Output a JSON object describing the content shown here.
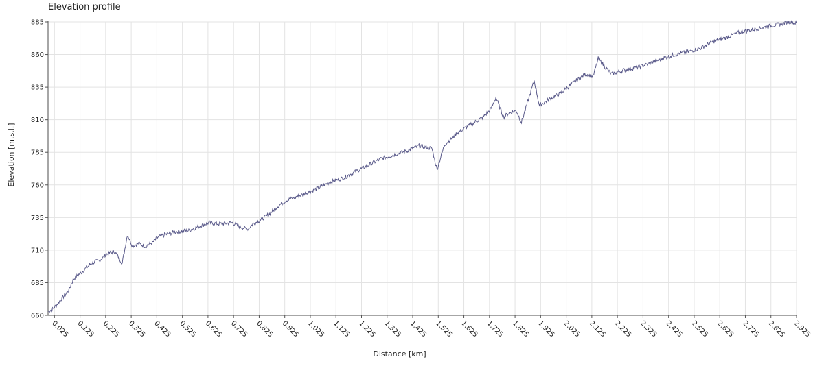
{
  "chart_data": {
    "type": "line",
    "title": "Elevation profile",
    "xlabel": "Distance [km]",
    "ylabel": "Elevation [m.s.l.]",
    "xlim": [
      0.0,
      2.925
    ],
    "ylim": [
      660,
      885
    ],
    "x_ticks": [
      "0.025",
      "0.125",
      "0.225",
      "0.325",
      "0.425",
      "0.525",
      "0.625",
      "0.725",
      "0.825",
      "0.925",
      "1.025",
      "1.125",
      "1.225",
      "1.325",
      "1.425",
      "1.525",
      "1.625",
      "1.725",
      "1.825",
      "1.925",
      "2.025",
      "2.125",
      "2.225",
      "2.325",
      "2.425",
      "2.525",
      "2.625",
      "2.725",
      "2.825",
      "2.925"
    ],
    "y_ticks": [
      660,
      685,
      710,
      735,
      760,
      785,
      810,
      835,
      860,
      885
    ],
    "grid": true,
    "line_color": "#5a5a8a",
    "series": [
      {
        "x": [
          0.0,
          0.02,
          0.05,
          0.08,
          0.1,
          0.13,
          0.17,
          0.2,
          0.23,
          0.26,
          0.29,
          0.31,
          0.33,
          0.35,
          0.38,
          0.41,
          0.43,
          0.46,
          0.5,
          0.55,
          0.6,
          0.63,
          0.67,
          0.72,
          0.75,
          0.78,
          0.8,
          0.83,
          0.86,
          0.9,
          0.93,
          1.0,
          1.05,
          1.1,
          1.15,
          1.2,
          1.25,
          1.3,
          1.35,
          1.4,
          1.45,
          1.5,
          1.52,
          1.55,
          1.6,
          1.65,
          1.7,
          1.73,
          1.75,
          1.78,
          1.8,
          1.83,
          1.85,
          1.9,
          1.92,
          1.97,
          2.0,
          2.05,
          2.1,
          2.13,
          2.15,
          2.2,
          2.25,
          2.3,
          2.35,
          2.4,
          2.45,
          2.5,
          2.55,
          2.6,
          2.65,
          2.7,
          2.75,
          2.8,
          2.85,
          2.9,
          2.925
        ],
        "y": [
          663,
          665,
          672,
          679,
          688,
          693,
          700,
          702,
          707,
          709,
          700,
          722,
          713,
          715,
          713,
          716,
          720,
          722,
          724,
          725,
          729,
          731,
          730,
          731,
          728,
          726,
          730,
          733,
          737,
          744,
          748,
          753,
          757,
          762,
          765,
          770,
          775,
          780,
          783,
          786,
          790,
          788,
          772,
          791,
          800,
          806,
          812,
          818,
          827,
          812,
          815,
          817,
          808,
          840,
          821,
          827,
          830,
          838,
          845,
          843,
          857,
          845,
          848,
          850,
          853,
          857,
          860,
          862,
          865,
          870,
          873,
          877,
          879,
          881,
          883,
          885,
          884
        ]
      }
    ]
  }
}
